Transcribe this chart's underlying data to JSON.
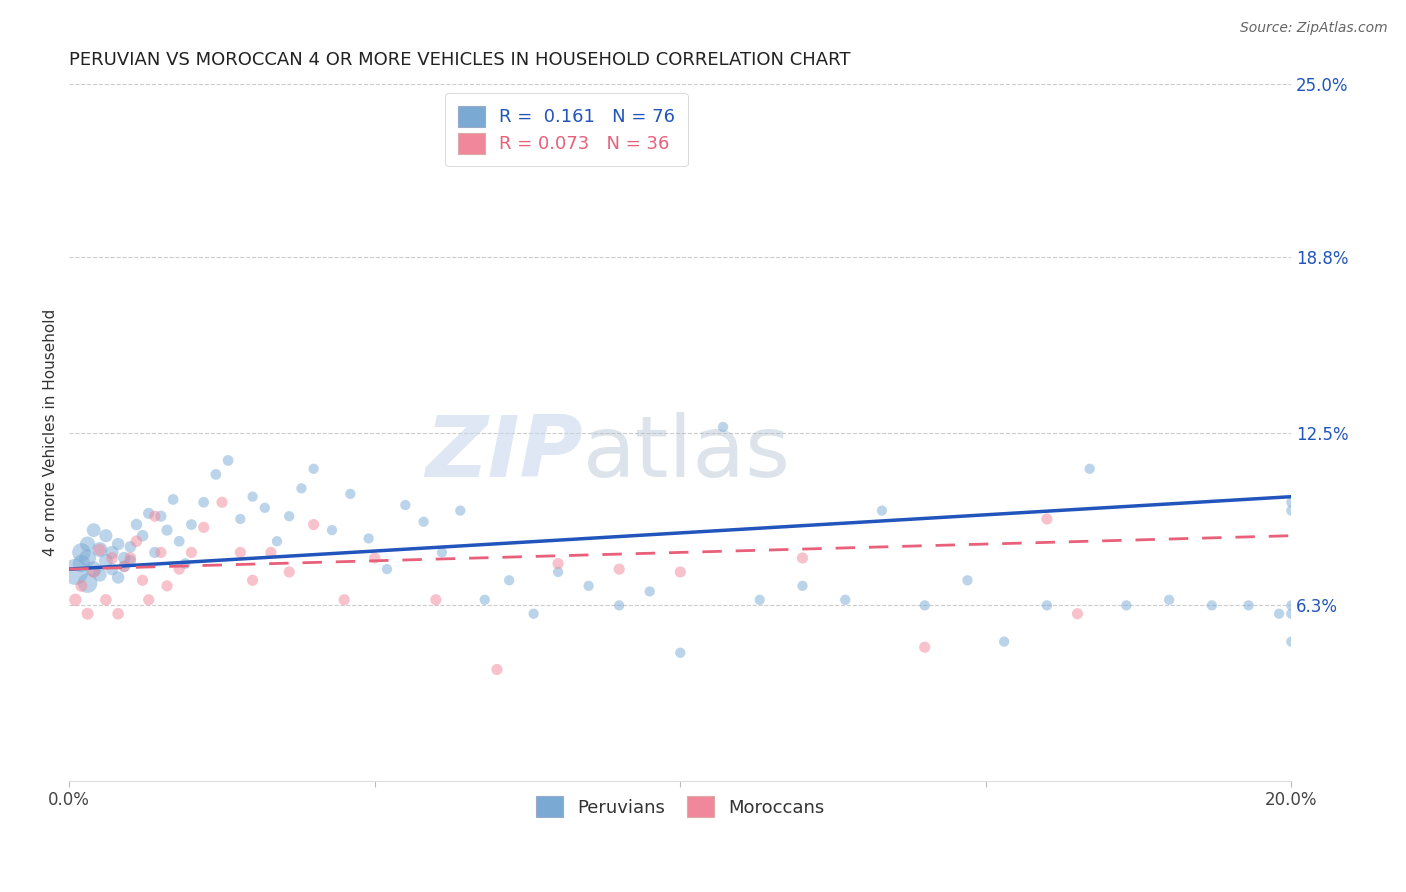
{
  "title": "PERUVIAN VS MOROCCAN 4 OR MORE VEHICLES IN HOUSEHOLD CORRELATION CHART",
  "source": "Source: ZipAtlas.com",
  "ylabel": "4 or more Vehicles in Household",
  "xlim": [
    0.0,
    0.2
  ],
  "ylim": [
    0.0,
    0.25
  ],
  "ytick_positions": [
    0.063,
    0.125,
    0.188,
    0.25
  ],
  "ytick_labels": [
    "6.3%",
    "12.5%",
    "18.8%",
    "25.0%"
  ],
  "peruvian_color": "#7AAAD4",
  "moroccan_color": "#F0879A",
  "peruvian_R": 0.161,
  "peruvian_N": 76,
  "moroccan_R": 0.073,
  "moroccan_N": 36,
  "legend_label_1": "Peruvians",
  "legend_label_2": "Moroccans",
  "watermark_zip": "ZIP",
  "watermark_atlas": "atlas",
  "blue_line_color": "#2255BB",
  "pink_line_color": "#E8607A",
  "peruvian_x": [
    0.001,
    0.002,
    0.002,
    0.003,
    0.003,
    0.003,
    0.004,
    0.004,
    0.005,
    0.005,
    0.006,
    0.006,
    0.007,
    0.007,
    0.008,
    0.008,
    0.009,
    0.009,
    0.01,
    0.01,
    0.011,
    0.012,
    0.013,
    0.014,
    0.015,
    0.016,
    0.017,
    0.018,
    0.019,
    0.02,
    0.022,
    0.024,
    0.026,
    0.028,
    0.03,
    0.032,
    0.034,
    0.036,
    0.038,
    0.04,
    0.043,
    0.046,
    0.049,
    0.052,
    0.055,
    0.058,
    0.061,
    0.064,
    0.068,
    0.072,
    0.076,
    0.08,
    0.085,
    0.09,
    0.095,
    0.1,
    0.107,
    0.113,
    0.12,
    0.127,
    0.133,
    0.14,
    0.147,
    0.153,
    0.16,
    0.167,
    0.173,
    0.18,
    0.187,
    0.193,
    0.198,
    0.2,
    0.2,
    0.2,
    0.2,
    0.2
  ],
  "peruvian_y": [
    0.075,
    0.082,
    0.078,
    0.071,
    0.08,
    0.085,
    0.076,
    0.09,
    0.083,
    0.074,
    0.079,
    0.088,
    0.082,
    0.076,
    0.085,
    0.073,
    0.08,
    0.077,
    0.084,
    0.079,
    0.092,
    0.088,
    0.096,
    0.082,
    0.095,
    0.09,
    0.101,
    0.086,
    0.078,
    0.092,
    0.1,
    0.11,
    0.115,
    0.094,
    0.102,
    0.098,
    0.086,
    0.095,
    0.105,
    0.112,
    0.09,
    0.103,
    0.087,
    0.076,
    0.099,
    0.093,
    0.082,
    0.097,
    0.065,
    0.072,
    0.06,
    0.075,
    0.07,
    0.063,
    0.068,
    0.046,
    0.127,
    0.065,
    0.07,
    0.065,
    0.097,
    0.063,
    0.072,
    0.05,
    0.063,
    0.112,
    0.063,
    0.065,
    0.063,
    0.063,
    0.06,
    0.1,
    0.097,
    0.063,
    0.06,
    0.05
  ],
  "peruvian_sizes": [
    350,
    180,
    160,
    200,
    150,
    120,
    130,
    100,
    120,
    100,
    100,
    90,
    90,
    80,
    80,
    80,
    80,
    70,
    70,
    70,
    70,
    70,
    65,
    65,
    65,
    65,
    60,
    60,
    60,
    60,
    60,
    60,
    60,
    55,
    55,
    55,
    55,
    55,
    55,
    55,
    55,
    55,
    55,
    55,
    55,
    55,
    55,
    55,
    55,
    55,
    55,
    55,
    55,
    55,
    55,
    55,
    55,
    55,
    55,
    55,
    55,
    55,
    55,
    55,
    55,
    55,
    55,
    55,
    55,
    55,
    55,
    55,
    55,
    55,
    55,
    55
  ],
  "moroccan_x": [
    0.001,
    0.002,
    0.003,
    0.004,
    0.005,
    0.006,
    0.007,
    0.008,
    0.009,
    0.01,
    0.011,
    0.012,
    0.013,
    0.014,
    0.015,
    0.016,
    0.018,
    0.02,
    0.022,
    0.025,
    0.028,
    0.03,
    0.033,
    0.036,
    0.04,
    0.045,
    0.05,
    0.06,
    0.07,
    0.08,
    0.09,
    0.1,
    0.12,
    0.14,
    0.16,
    0.165
  ],
  "moroccan_y": [
    0.065,
    0.07,
    0.06,
    0.075,
    0.083,
    0.065,
    0.08,
    0.06,
    0.077,
    0.08,
    0.086,
    0.072,
    0.065,
    0.095,
    0.082,
    0.07,
    0.076,
    0.082,
    0.091,
    0.1,
    0.082,
    0.072,
    0.082,
    0.075,
    0.092,
    0.065,
    0.08,
    0.065,
    0.04,
    0.078,
    0.076,
    0.075,
    0.08,
    0.048,
    0.094,
    0.06
  ],
  "moroccan_sizes": [
    80,
    75,
    75,
    75,
    75,
    70,
    70,
    70,
    70,
    70,
    70,
    65,
    65,
    65,
    65,
    65,
    65,
    65,
    65,
    65,
    65,
    65,
    65,
    65,
    65,
    65,
    65,
    65,
    65,
    65,
    65,
    65,
    65,
    65,
    65,
    65
  ]
}
